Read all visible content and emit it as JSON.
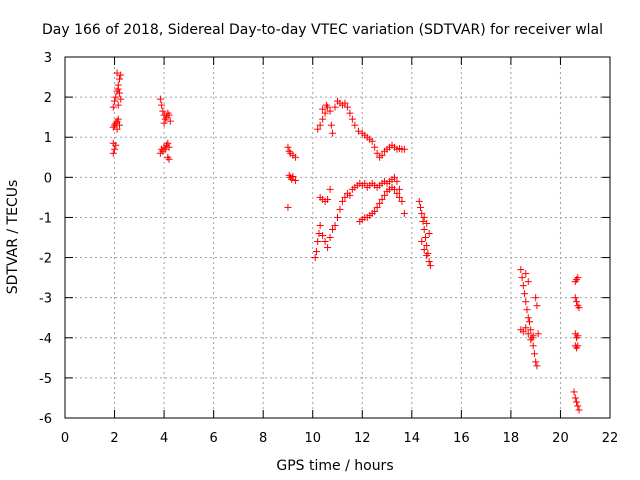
{
  "chart_data": {
    "type": "scatter",
    "title": "Day 166 of 2018, Sidereal Day-to-day VTEC variation (SDTVAR) for receiver wlal",
    "xlabel": "GPS time / hours",
    "ylabel": "SDTVAR / TECUs",
    "xlim": [
      0,
      22
    ],
    "ylim": [
      -6,
      3
    ],
    "xticks": [
      0,
      2,
      4,
      6,
      8,
      10,
      12,
      14,
      16,
      18,
      20,
      22
    ],
    "yticks": [
      -6,
      -5,
      -4,
      -3,
      -2,
      -1,
      0,
      1,
      2,
      3
    ],
    "grid": true,
    "marker": "+",
    "color": "#ff0000",
    "series": [
      {
        "name": "SDTVAR",
        "points": [
          [
            1.95,
            1.75
          ],
          [
            2.0,
            1.9
          ],
          [
            2.05,
            2.0
          ],
          [
            2.1,
            2.15
          ],
          [
            2.15,
            2.3
          ],
          [
            2.2,
            2.45
          ],
          [
            2.25,
            2.55
          ],
          [
            2.1,
            2.6
          ],
          [
            2.15,
            2.2
          ],
          [
            2.2,
            2.1
          ],
          [
            2.25,
            1.95
          ],
          [
            2.15,
            1.8
          ],
          [
            1.95,
            1.25
          ],
          [
            2.0,
            1.3
          ],
          [
            2.05,
            1.35
          ],
          [
            2.1,
            1.4
          ],
          [
            2.15,
            1.45
          ],
          [
            2.2,
            1.3
          ],
          [
            2.1,
            1.2
          ],
          [
            1.95,
            0.6
          ],
          [
            2.0,
            0.7
          ],
          [
            2.05,
            0.8
          ],
          [
            1.95,
            0.85
          ],
          [
            3.85,
            1.95
          ],
          [
            3.9,
            1.8
          ],
          [
            3.95,
            1.65
          ],
          [
            4.0,
            1.55
          ],
          [
            4.05,
            1.45
          ],
          [
            4.1,
            1.5
          ],
          [
            4.15,
            1.6
          ],
          [
            4.2,
            1.55
          ],
          [
            4.25,
            1.4
          ],
          [
            4.0,
            1.35
          ],
          [
            3.85,
            0.6
          ],
          [
            3.9,
            0.7
          ],
          [
            3.95,
            0.65
          ],
          [
            4.0,
            0.75
          ],
          [
            4.05,
            0.7
          ],
          [
            4.1,
            0.8
          ],
          [
            4.15,
            0.85
          ],
          [
            4.2,
            0.75
          ],
          [
            4.15,
            0.5
          ],
          [
            4.2,
            0.45
          ],
          [
            9.0,
            0.75
          ],
          [
            9.05,
            0.65
          ],
          [
            9.1,
            0.6
          ],
          [
            9.2,
            0.55
          ],
          [
            9.3,
            0.5
          ],
          [
            9.05,
            0.05
          ],
          [
            9.1,
            0.0
          ],
          [
            9.15,
            -0.05
          ],
          [
            9.2,
            0.02
          ],
          [
            9.3,
            -0.08
          ],
          [
            9.0,
            -0.75
          ],
          [
            10.2,
            1.2
          ],
          [
            10.3,
            1.3
          ],
          [
            10.4,
            1.45
          ],
          [
            10.5,
            1.6
          ],
          [
            10.6,
            1.75
          ],
          [
            10.7,
            1.65
          ],
          [
            10.4,
            1.7
          ],
          [
            10.55,
            1.8
          ],
          [
            10.75,
            1.3
          ],
          [
            10.8,
            1.1
          ],
          [
            10.9,
            1.75
          ],
          [
            11.0,
            1.9
          ],
          [
            11.1,
            1.85
          ],
          [
            11.2,
            1.8
          ],
          [
            11.3,
            1.85
          ],
          [
            11.4,
            1.75
          ],
          [
            11.5,
            1.6
          ],
          [
            11.6,
            1.45
          ],
          [
            11.7,
            1.3
          ],
          [
            11.85,
            1.15
          ],
          [
            12.0,
            1.1
          ],
          [
            12.1,
            1.05
          ],
          [
            12.2,
            1.0
          ],
          [
            12.3,
            0.95
          ],
          [
            12.4,
            0.9
          ],
          [
            12.5,
            0.75
          ],
          [
            12.6,
            0.6
          ],
          [
            12.7,
            0.5
          ],
          [
            12.8,
            0.55
          ],
          [
            12.9,
            0.65
          ],
          [
            13.0,
            0.7
          ],
          [
            13.1,
            0.75
          ],
          [
            13.2,
            0.8
          ],
          [
            13.3,
            0.75
          ],
          [
            13.4,
            0.7
          ],
          [
            13.5,
            0.72
          ],
          [
            13.6,
            0.7
          ],
          [
            13.7,
            0.7
          ],
          [
            10.3,
            -0.5
          ],
          [
            10.4,
            -0.55
          ],
          [
            10.5,
            -0.6
          ],
          [
            10.6,
            -0.55
          ],
          [
            10.7,
            -0.3
          ],
          [
            10.1,
            -2.0
          ],
          [
            10.15,
            -1.85
          ],
          [
            10.2,
            -1.6
          ],
          [
            10.25,
            -1.4
          ],
          [
            10.3,
            -1.2
          ],
          [
            10.4,
            -1.45
          ],
          [
            10.5,
            -1.6
          ],
          [
            10.6,
            -1.75
          ],
          [
            10.7,
            -1.5
          ],
          [
            10.8,
            -1.3
          ],
          [
            10.9,
            -1.2
          ],
          [
            11.0,
            -1.0
          ],
          [
            11.1,
            -0.8
          ],
          [
            11.2,
            -0.6
          ],
          [
            11.3,
            -0.5
          ],
          [
            11.4,
            -0.4
          ],
          [
            11.5,
            -0.45
          ],
          [
            11.6,
            -0.3
          ],
          [
            11.7,
            -0.25
          ],
          [
            11.8,
            -0.2
          ],
          [
            11.9,
            -0.15
          ],
          [
            12.0,
            -0.2
          ],
          [
            12.1,
            -0.15
          ],
          [
            12.2,
            -0.25
          ],
          [
            12.3,
            -0.2
          ],
          [
            12.4,
            -0.15
          ],
          [
            12.5,
            -0.2
          ],
          [
            12.6,
            -0.25
          ],
          [
            12.7,
            -0.2
          ],
          [
            12.8,
            -0.15
          ],
          [
            12.9,
            -0.1
          ],
          [
            13.0,
            -0.15
          ],
          [
            13.1,
            -0.1
          ],
          [
            13.2,
            -0.05
          ],
          [
            13.3,
            0.0
          ],
          [
            13.4,
            -0.1
          ],
          [
            13.5,
            -0.3
          ],
          [
            13.6,
            -0.6
          ],
          [
            13.7,
            -0.9
          ],
          [
            11.9,
            -1.1
          ],
          [
            12.0,
            -1.05
          ],
          [
            12.1,
            -1.0
          ],
          [
            12.2,
            -1.0
          ],
          [
            12.3,
            -0.95
          ],
          [
            12.4,
            -0.9
          ],
          [
            12.5,
            -0.85
          ],
          [
            12.6,
            -0.75
          ],
          [
            12.7,
            -0.65
          ],
          [
            12.8,
            -0.55
          ],
          [
            12.9,
            -0.45
          ],
          [
            13.0,
            -0.35
          ],
          [
            13.1,
            -0.3
          ],
          [
            13.2,
            -0.25
          ],
          [
            13.3,
            -0.3
          ],
          [
            13.4,
            -0.4
          ],
          [
            13.5,
            -0.5
          ],
          [
            14.3,
            -0.6
          ],
          [
            14.35,
            -0.75
          ],
          [
            14.4,
            -0.9
          ],
          [
            14.45,
            -1.1
          ],
          [
            14.5,
            -1.3
          ],
          [
            14.55,
            -1.5
          ],
          [
            14.6,
            -1.7
          ],
          [
            14.65,
            -1.9
          ],
          [
            14.7,
            -2.1
          ],
          [
            14.75,
            -2.2
          ],
          [
            14.5,
            -1.0
          ],
          [
            14.6,
            -1.15
          ],
          [
            14.7,
            -1.4
          ],
          [
            14.4,
            -1.6
          ],
          [
            14.5,
            -1.8
          ],
          [
            14.6,
            -1.95
          ],
          [
            18.4,
            -2.3
          ],
          [
            18.45,
            -2.5
          ],
          [
            18.5,
            -2.7
          ],
          [
            18.55,
            -2.9
          ],
          [
            18.6,
            -3.1
          ],
          [
            18.65,
            -3.3
          ],
          [
            18.7,
            -3.5
          ],
          [
            18.75,
            -3.6
          ],
          [
            18.8,
            -3.8
          ],
          [
            18.85,
            -4.0
          ],
          [
            18.9,
            -4.2
          ],
          [
            18.95,
            -4.4
          ],
          [
            19.0,
            -4.6
          ],
          [
            19.05,
            -4.7
          ],
          [
            18.4,
            -3.8
          ],
          [
            18.5,
            -3.85
          ],
          [
            18.6,
            -3.75
          ],
          [
            18.7,
            -3.9
          ],
          [
            18.8,
            -4.05
          ],
          [
            18.9,
            -3.95
          ],
          [
            19.0,
            -3.0
          ],
          [
            19.05,
            -3.2
          ],
          [
            19.1,
            -3.9
          ],
          [
            18.6,
            -2.4
          ],
          [
            18.7,
            -2.6
          ],
          [
            20.6,
            -2.6
          ],
          [
            20.65,
            -2.55
          ],
          [
            20.7,
            -2.5
          ],
          [
            20.6,
            -3.0
          ],
          [
            20.65,
            -3.1
          ],
          [
            20.7,
            -3.2
          ],
          [
            20.75,
            -3.25
          ],
          [
            20.6,
            -3.9
          ],
          [
            20.65,
            -4.0
          ],
          [
            20.7,
            -3.95
          ],
          [
            20.6,
            -4.2
          ],
          [
            20.65,
            -4.25
          ],
          [
            20.7,
            -4.2
          ],
          [
            20.55,
            -5.35
          ],
          [
            20.6,
            -5.5
          ],
          [
            20.65,
            -5.6
          ],
          [
            20.7,
            -5.7
          ],
          [
            20.75,
            -5.8
          ]
        ]
      }
    ]
  }
}
